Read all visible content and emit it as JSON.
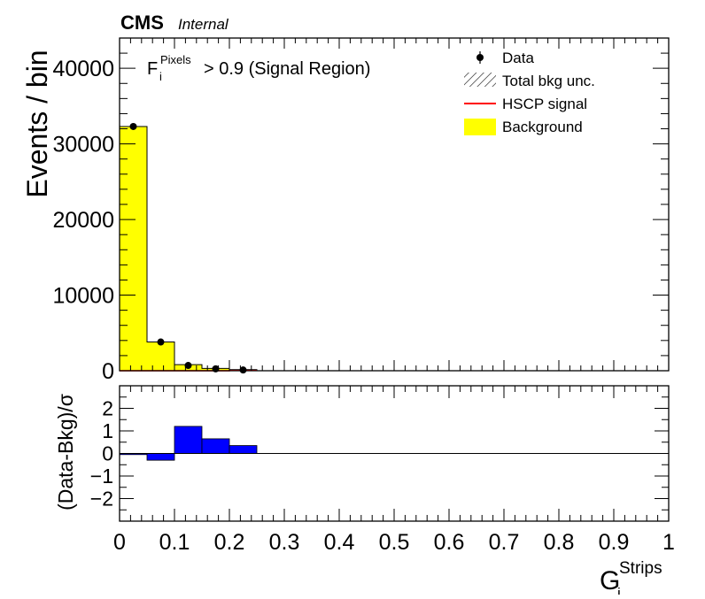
{
  "header": {
    "experiment": "CMS",
    "status": "Internal"
  },
  "chart_data": [
    {
      "type": "bar",
      "panel": "main",
      "title": "",
      "annotation": {
        "prefix": "F",
        "sub": "i",
        "sup": "Pixels",
        "text": "> 0.9 (Signal Region)"
      },
      "ylabel": "Events / bin",
      "xlim": [
        0,
        1
      ],
      "ylim": [
        0,
        44000
      ],
      "yticks": [
        0,
        10000,
        20000,
        30000,
        40000
      ],
      "bin_edges": [
        0,
        0.05,
        0.1,
        0.15,
        0.2,
        0.25
      ],
      "series": [
        {
          "name": "Background",
          "color": "#ffff00",
          "values": [
            32300,
            3800,
            800,
            300,
            150
          ]
        },
        {
          "name": "Data",
          "marker": "point",
          "x": [
            0.025,
            0.075,
            0.125,
            0.175,
            0.225
          ],
          "values": [
            32300,
            3800,
            700,
            250,
            100
          ]
        },
        {
          "name": "HSCP signal",
          "color": "#ff0000",
          "values": [
            0,
            0,
            0,
            0,
            30
          ]
        }
      ],
      "legend": {
        "placement": "top-right",
        "entries": [
          {
            "label": "Data",
            "style": "marker"
          },
          {
            "label": "Total bkg unc.",
            "style": "hatch"
          },
          {
            "label": "HSCP signal",
            "style": "line",
            "color": "#ff0000"
          },
          {
            "label": "Background",
            "style": "fill",
            "color": "#ffff00"
          }
        ]
      }
    },
    {
      "type": "bar",
      "panel": "ratio",
      "ylabel": "(Data-Bkg)/σ",
      "xlabel": {
        "base": "G",
        "sub": "i",
        "sup": "Strips"
      },
      "xlim": [
        0,
        1
      ],
      "ylim": [
        -3,
        3
      ],
      "xticks": [
        0,
        0.1,
        0.2,
        0.3,
        0.4,
        0.5,
        0.6,
        0.7,
        0.8,
        0.9,
        1
      ],
      "xtick_labels": [
        "0",
        "0.1",
        "0.2",
        "0.3",
        "0.4",
        "0.5",
        "0.6",
        "0.7",
        "0.8",
        "0.9",
        "1"
      ],
      "yticks": [
        -2,
        -1,
        0,
        1,
        2
      ],
      "ytick_labels": [
        "−2",
        "−1",
        "0",
        "1",
        "2"
      ],
      "bin_edges": [
        0,
        0.05,
        0.1,
        0.15,
        0.2,
        0.25
      ],
      "values": [
        -0.05,
        -0.3,
        1.2,
        0.65,
        0.35
      ],
      "color": "#0000ff"
    }
  ]
}
